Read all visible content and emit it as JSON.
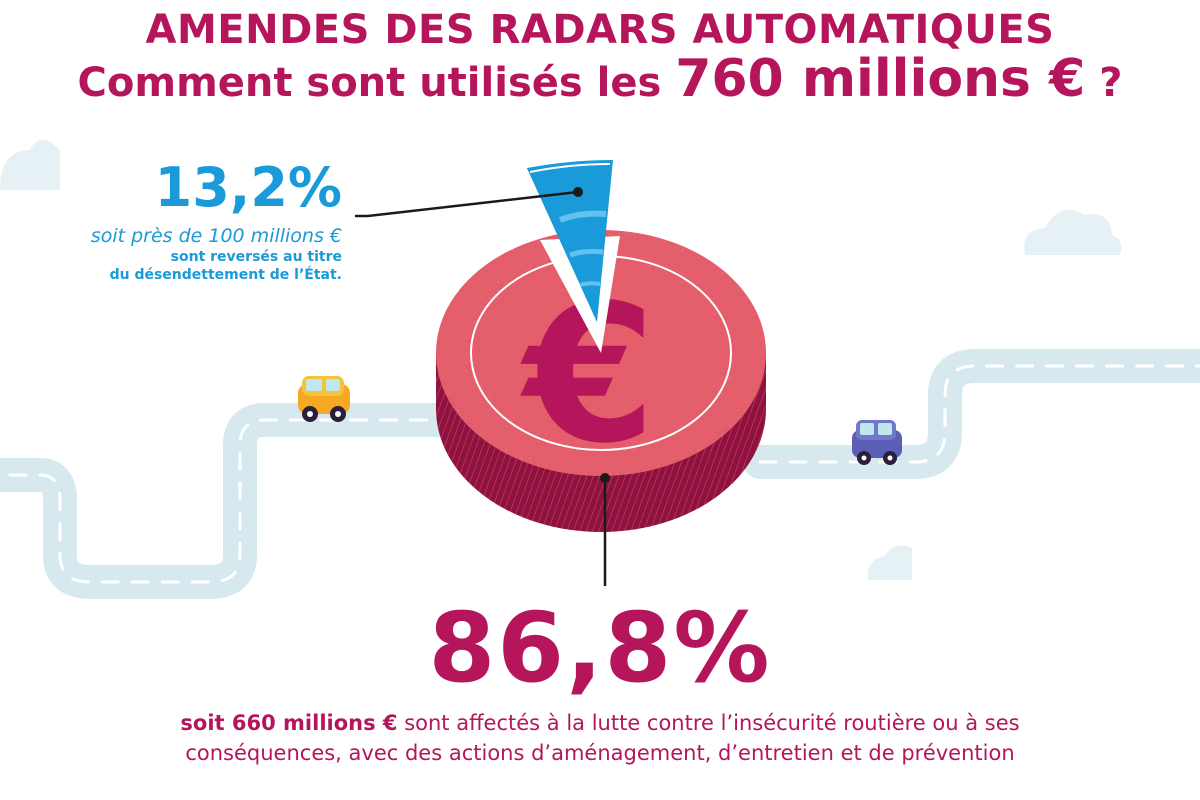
{
  "title": {
    "line1": "AMENDES DES RADARS AUTOMATIQUES",
    "line2_prefix": "Comment sont utilisés les ",
    "line2_amount": "760 millions €",
    "line2_suffix": " ?"
  },
  "chart_data": {
    "type": "pie",
    "categories": [
      "reversés au titre du désendettement de l'État",
      "affectés à la lutte contre l'insécurité routière ou à ses conséquences"
    ],
    "values": [
      13.2,
      86.8
    ],
    "labels": [
      "13,2%",
      "86,8%"
    ],
    "amounts": [
      "soit près de 100 millions €",
      "soit 660 millions €"
    ],
    "total": "760 millions €",
    "colors": [
      "#1a9ad8",
      "#e35d6a"
    ]
  },
  "small_slice": {
    "percent": "13,2%",
    "line1": "soit près de 100 millions €",
    "line2": "sont reversés au titre",
    "line3": "du désendettement de l’État."
  },
  "big_slice": {
    "percent": "86,8%",
    "bold": "soit 660 millions €",
    "rest1": " sont affectés à la lutte contre l’insécurité routière ou à ses",
    "line2": "conséquences, avec des actions d’aménagement, d’entretien et de prévention"
  },
  "symbol": "€",
  "colors": {
    "magenta": "#b5155a",
    "blue": "#1a9ad8",
    "coral": "#e35d6a",
    "road": "#d7e9ee",
    "cloud": "#e6f1f5"
  },
  "icons": [
    "cloud-icon",
    "car-icon"
  ]
}
